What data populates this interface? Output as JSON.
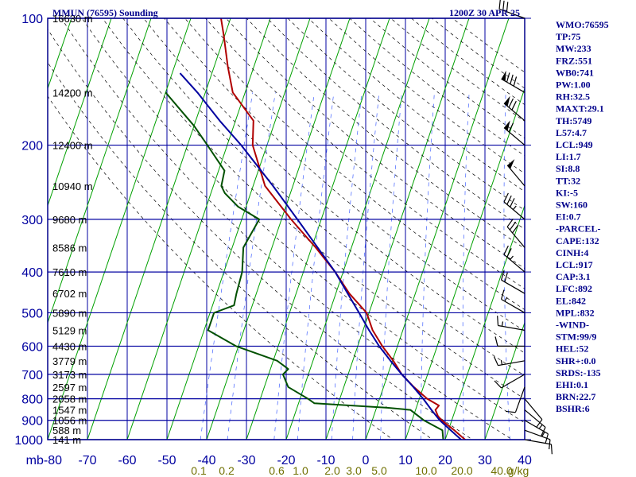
{
  "header": {
    "station": "MMUN (76595) Sounding",
    "time": "1200Z 30 APR 25"
  },
  "chart_data": {
    "type": "skew-t",
    "pressure_levels": [
      100,
      200,
      300,
      400,
      500,
      600,
      700,
      800,
      900,
      1000
    ],
    "pressure_ticks": [
      "100",
      "200",
      "300",
      "400",
      "500",
      "600",
      "700",
      "800",
      "900",
      "1000"
    ],
    "temperature_ticks": [
      "mb-80",
      "-70",
      "-60",
      "-50",
      "-40",
      "-30",
      "-20",
      "-10",
      "0",
      "10",
      "20",
      "30",
      "40"
    ],
    "temperature_tick_values": [
      -80,
      -70,
      -60,
      -50,
      -40,
      -30,
      -20,
      -10,
      0,
      10,
      20,
      30,
      40
    ],
    "temperature_range": [
      -80,
      40
    ],
    "pressure_range": [
      100,
      1000
    ],
    "mixing_ratio_labels": [
      "0.1",
      "0.2",
      "0.6",
      "1.0",
      "2.0",
      "3.0",
      "5.0",
      "10.0",
      "20.0",
      "40.0",
      "g/kg"
    ],
    "height_labels": [
      {
        "p": 100,
        "label": "16630 m"
      },
      {
        "p": 150,
        "label": "14200 m"
      },
      {
        "p": 200,
        "label": "12400 m"
      },
      {
        "p": 250,
        "label": "10940 m"
      },
      {
        "p": 300,
        "label": "9680 m"
      },
      {
        "p": 350,
        "label": "8586 m"
      },
      {
        "p": 400,
        "label": "7610 m"
      },
      {
        "p": 450,
        "label": "6702 m"
      },
      {
        "p": 500,
        "label": "5890 m"
      },
      {
        "p": 550,
        "label": "5129 m"
      },
      {
        "p": 600,
        "label": "4430 m"
      },
      {
        "p": 650,
        "label": "3779 m"
      },
      {
        "p": 700,
        "label": "3173 m"
      },
      {
        "p": 750,
        "label": "2597 m"
      },
      {
        "p": 800,
        "label": "2058 m"
      },
      {
        "p": 850,
        "label": "1547 m"
      },
      {
        "p": 900,
        "label": "1056 m"
      },
      {
        "p": 950,
        "label": "588 m"
      },
      {
        "p": 1000,
        "label": "141 m"
      }
    ],
    "series": [
      {
        "name": "temperature",
        "color": "#b00000",
        "points": [
          [
            1015,
            26.5
          ],
          [
            1000,
            25.0
          ],
          [
            950,
            21.5
          ],
          [
            925,
            19.5
          ],
          [
            900,
            17.5
          ],
          [
            880,
            16.2
          ],
          [
            850,
            15.0
          ],
          [
            830,
            15.5
          ],
          [
            800,
            12.0
          ],
          [
            750,
            7.6
          ],
          [
            700,
            3.5
          ],
          [
            650,
            0.2
          ],
          [
            600,
            -3.8
          ],
          [
            550,
            -7.6
          ],
          [
            500,
            -10.6
          ],
          [
            450,
            -16.6
          ],
          [
            400,
            -22.0
          ],
          [
            350,
            -29.0
          ],
          [
            300,
            -37.6
          ],
          [
            250,
            -47.0
          ],
          [
            200,
            -53.6
          ],
          [
            175,
            -55.5
          ],
          [
            150,
            -63.1
          ],
          [
            130,
            -66.6
          ],
          [
            110,
            -70.2
          ],
          [
            100,
            -72.4
          ]
        ]
      },
      {
        "name": "dewpoint",
        "color": "#005000",
        "points": [
          [
            1015,
            21.0
          ],
          [
            1000,
            19.5
          ],
          [
            950,
            18.5
          ],
          [
            900,
            13.0
          ],
          [
            850,
            8.7
          ],
          [
            840,
            2.7
          ],
          [
            820,
            -16.0
          ],
          [
            800,
            -18.0
          ],
          [
            750,
            -24.0
          ],
          [
            700,
            -26.4
          ],
          [
            680,
            -25.5
          ],
          [
            650,
            -29.0
          ],
          [
            600,
            -40.6
          ],
          [
            550,
            -49.0
          ],
          [
            500,
            -49.0
          ],
          [
            480,
            -44.6
          ],
          [
            450,
            -45.0
          ],
          [
            400,
            -45.4
          ],
          [
            350,
            -47.2
          ],
          [
            300,
            -45.6
          ],
          [
            280,
            -52.0
          ],
          [
            260,
            -56.5
          ],
          [
            250,
            -58.0
          ],
          [
            230,
            -58.5
          ],
          [
            200,
            -65.0
          ],
          [
            180,
            -70.0
          ],
          [
            150,
            -80.0
          ]
        ]
      },
      {
        "name": "parcel",
        "color": "#0000a0",
        "points": [
          [
            1000,
            24.0
          ],
          [
            950,
            20.6
          ],
          [
            900,
            17.0
          ],
          [
            850,
            14.0
          ],
          [
            800,
            11.0
          ],
          [
            750,
            7.5
          ],
          [
            700,
            3.5
          ],
          [
            650,
            -0.5
          ],
          [
            600,
            -4.6
          ],
          [
            550,
            -8.5
          ],
          [
            500,
            -12.5
          ],
          [
            450,
            -17.0
          ],
          [
            400,
            -22.0
          ],
          [
            350,
            -28.5
          ],
          [
            300,
            -36.0
          ],
          [
            250,
            -45.0
          ],
          [
            200,
            -56.5
          ],
          [
            175,
            -64.0
          ],
          [
            150,
            -72.0
          ],
          [
            135,
            -78.0
          ]
        ]
      }
    ],
    "wind_barbs": [
      {
        "p": 1000,
        "dir": 100,
        "spd": 10
      },
      {
        "p": 950,
        "dir": 110,
        "spd": 10
      },
      {
        "p": 900,
        "dir": 120,
        "spd": 15
      },
      {
        "p": 850,
        "dir": 130,
        "spd": 15
      },
      {
        "p": 800,
        "dir": 140,
        "spd": 10
      },
      {
        "p": 750,
        "dir": 200,
        "spd": 10
      },
      {
        "p": 700,
        "dir": 240,
        "spd": 10
      },
      {
        "p": 650,
        "dir": 260,
        "spd": 15
      },
      {
        "p": 600,
        "dir": 270,
        "spd": 10
      },
      {
        "p": 550,
        "dir": 280,
        "spd": 15
      },
      {
        "p": 500,
        "dir": 300,
        "spd": 15
      },
      {
        "p": 450,
        "dir": 300,
        "spd": 20
      },
      {
        "p": 400,
        "dir": 310,
        "spd": 25
      },
      {
        "p": 350,
        "dir": 320,
        "spd": 30
      },
      {
        "p": 300,
        "dir": 310,
        "spd": 35
      },
      {
        "p": 250,
        "dir": 320,
        "spd": 50
      },
      {
        "p": 200,
        "dir": 310,
        "spd": 60
      },
      {
        "p": 175,
        "dir": 310,
        "spd": 70
      },
      {
        "p": 150,
        "dir": 300,
        "spd": 80
      },
      {
        "p": 100,
        "dir": 290,
        "spd": 30
      }
    ]
  },
  "indices": [
    "WMO:76595",
    "TP:75",
    "MW:233",
    "FRZ:551",
    "WB0:741",
    "PW:1.00",
    "RH:32.5",
    "MAXT:29.1",
    "TH:5749",
    "L57:4.7",
    "LCL:949",
    "LI:1.7",
    "SI:8.8",
    "TT:32",
    "KI:-5",
    "SW:160",
    "EI:0.7",
    "-PARCEL-",
    "CAPE:132",
    "CINH:4",
    "LCL:917",
    "CAP:3.1",
    "LFC:892",
    "EL:842",
    "MPL:832",
    "-WIND-",
    "STM:99/9",
    "HEL:52",
    "SHR+:0.0",
    "SRDS:-135",
    "EHI:0.1",
    "BRN:22.7",
    "BSHR:6"
  ],
  "colors": {
    "frame": "#00008b",
    "grid": "#0000a0",
    "isotherm": "#00a000",
    "dry_adiabat": "#000000",
    "mixing_ratio": "#4060ff",
    "text": "#00008b"
  }
}
